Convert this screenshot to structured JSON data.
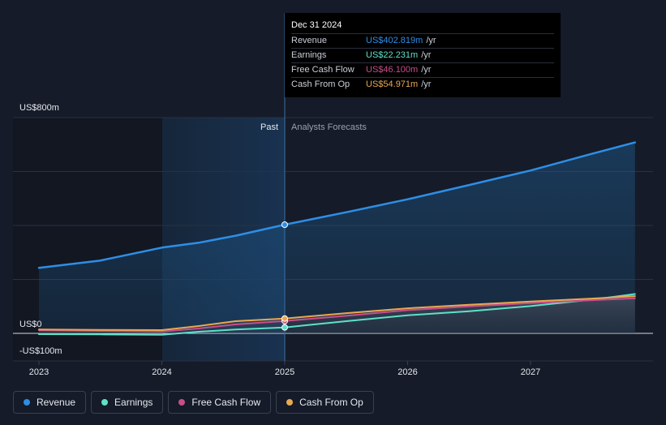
{
  "chart_data": {
    "type": "line",
    "x_tick_labels": [
      "2023",
      "2024",
      "2025",
      "2026",
      "2027"
    ],
    "y_tick_labels": [
      "US$800m",
      "US$0",
      "-US$100m"
    ],
    "ylim": [
      -100,
      800
    ],
    "section_labels": {
      "past": "Past",
      "forecast": "Analysts Forecasts"
    },
    "divider_x": 2025.0,
    "series": [
      {
        "name": "Revenue",
        "color": "#2e8ee6",
        "points": [
          [
            2023.0,
            243
          ],
          [
            2023.5,
            270
          ],
          [
            2024.0,
            318
          ],
          [
            2024.3,
            336
          ],
          [
            2024.6,
            362
          ],
          [
            2025.0,
            403
          ],
          [
            2025.5,
            449
          ],
          [
            2026.0,
            497
          ],
          [
            2026.5,
            550
          ],
          [
            2027.0,
            604
          ],
          [
            2027.5,
            666
          ],
          [
            2027.85,
            708
          ]
        ]
      },
      {
        "name": "Earnings",
        "color": "#5fe0c8",
        "points": [
          [
            2023.0,
            -3
          ],
          [
            2023.5,
            -4
          ],
          [
            2024.0,
            -5
          ],
          [
            2024.3,
            6
          ],
          [
            2024.6,
            14
          ],
          [
            2025.0,
            22
          ],
          [
            2025.5,
            45
          ],
          [
            2026.0,
            67
          ],
          [
            2026.5,
            82
          ],
          [
            2027.0,
            101
          ],
          [
            2027.5,
            125
          ],
          [
            2027.85,
            146
          ]
        ]
      },
      {
        "name": "Free Cash Flow",
        "color": "#c94d8a",
        "points": [
          [
            2023.0,
            11
          ],
          [
            2023.5,
            9
          ],
          [
            2024.0,
            7
          ],
          [
            2024.3,
            18
          ],
          [
            2024.6,
            33
          ],
          [
            2025.0,
            46
          ],
          [
            2025.5,
            65
          ],
          [
            2026.0,
            86
          ],
          [
            2026.5,
            100
          ],
          [
            2027.0,
            112
          ],
          [
            2027.5,
            123
          ],
          [
            2027.85,
            130
          ]
        ]
      },
      {
        "name": "Cash From Op",
        "color": "#e8a950",
        "points": [
          [
            2023.0,
            14
          ],
          [
            2023.5,
            13
          ],
          [
            2024.0,
            12
          ],
          [
            2024.3,
            27
          ],
          [
            2024.6,
            45
          ],
          [
            2025.0,
            55
          ],
          [
            2025.5,
            75
          ],
          [
            2026.0,
            93
          ],
          [
            2026.5,
            106
          ],
          [
            2027.0,
            118
          ],
          [
            2027.5,
            129
          ],
          [
            2027.85,
            138
          ]
        ]
      }
    ]
  },
  "tooltip": {
    "date": "Dec 31 2024",
    "unit": "/yr",
    "rows": [
      {
        "label": "Revenue",
        "value": "US$402.819m",
        "color": "#2e8ee6"
      },
      {
        "label": "Earnings",
        "value": "US$22.231m",
        "color": "#5fe0c8"
      },
      {
        "label": "Free Cash Flow",
        "value": "US$46.100m",
        "color": "#c94d8a"
      },
      {
        "label": "Cash From Op",
        "value": "US$54.971m",
        "color": "#e8a950"
      }
    ]
  },
  "legend": [
    {
      "label": "Revenue",
      "color": "#2e8ee6"
    },
    {
      "label": "Earnings",
      "color": "#5fe0c8"
    },
    {
      "label": "Free Cash Flow",
      "color": "#c94d8a"
    },
    {
      "label": "Cash From Op",
      "color": "#e8a950"
    }
  ]
}
